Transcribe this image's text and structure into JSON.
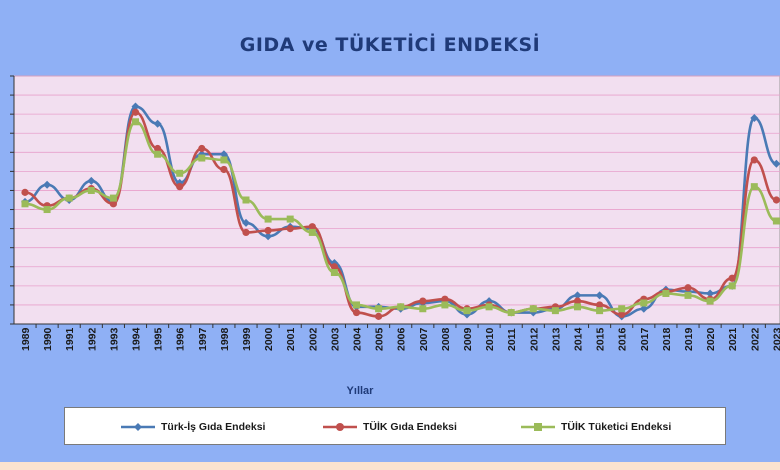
{
  "title": "GIDA ve TÜKETİCİ ENDEKSİ",
  "colors": {
    "background": "#8fb0f5",
    "plot_bg": "#f2dff0",
    "grid": "#e8a0cc"
  },
  "chart_data": {
    "type": "line",
    "title": "GIDA ve TÜKETİCİ ENDEKSİ",
    "xlabel": "Yıllar",
    "ylabel": "",
    "ylim": [
      0,
      13
    ],
    "grid": true,
    "legend_position": "bottom",
    "x": [
      "1989",
      "1990",
      "1991",
      "1992",
      "1993",
      "1994",
      "1995",
      "1996",
      "1997",
      "1998",
      "1999",
      "2000",
      "2001",
      "2002",
      "2003",
      "2004",
      "2005",
      "2006",
      "2007",
      "2008",
      "2009",
      "2010",
      "2011",
      "2012",
      "2013",
      "2014",
      "2015",
      "2016",
      "2017",
      "2018",
      "2019",
      "2020",
      "2021",
      "2022",
      "2023"
    ],
    "series": [
      {
        "name": "Türk-İş Gıda Endeksi",
        "color": "#4a7ab5",
        "marker": "diamond",
        "values": [
          6.4,
          7.3,
          6.5,
          7.5,
          6.4,
          11.4,
          10.5,
          7.4,
          8.9,
          8.9,
          5.3,
          4.6,
          5.1,
          5.0,
          3.2,
          0.9,
          0.9,
          0.8,
          1.1,
          1.2,
          0.5,
          1.2,
          0.6,
          0.6,
          0.8,
          1.5,
          1.5,
          0.4,
          0.8,
          1.8,
          1.7,
          1.6,
          2.0,
          10.8,
          8.4
        ]
      },
      {
        "name": "TÜİK Gıda Endeksi",
        "color": "#c0504d",
        "marker": "circle",
        "values": [
          6.9,
          6.2,
          6.6,
          7.1,
          6.3,
          11.1,
          9.2,
          7.2,
          9.2,
          8.1,
          4.8,
          4.9,
          5.0,
          5.1,
          3.0,
          0.6,
          0.4,
          0.9,
          1.2,
          1.3,
          0.8,
          1.0,
          0.6,
          0.8,
          0.9,
          1.2,
          1.0,
          0.5,
          1.3,
          1.7,
          1.9,
          1.3,
          2.4,
          8.6,
          6.5
        ]
      },
      {
        "name": "TÜİK Tüketici Endeksi",
        "color": "#9bbb59",
        "marker": "square",
        "values": [
          6.3,
          6.0,
          6.6,
          7.0,
          6.6,
          10.6,
          8.9,
          7.9,
          8.7,
          8.6,
          6.5,
          5.5,
          5.5,
          4.8,
          2.7,
          1.0,
          0.8,
          0.9,
          0.8,
          1.0,
          0.7,
          0.9,
          0.6,
          0.8,
          0.7,
          0.9,
          0.7,
          0.8,
          1.1,
          1.6,
          1.5,
          1.2,
          2.0,
          7.2,
          5.4
        ]
      }
    ]
  }
}
